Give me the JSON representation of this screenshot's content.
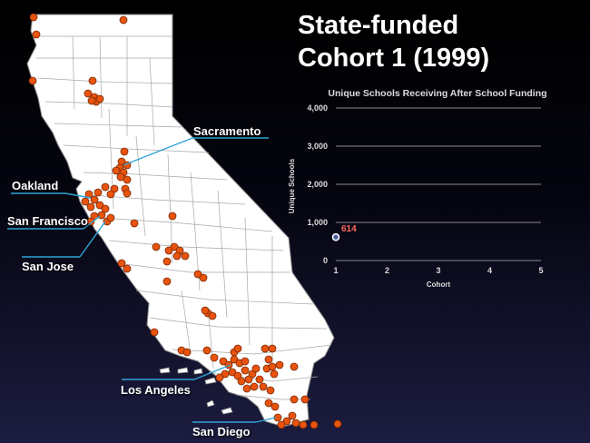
{
  "slide": {
    "title_line1": "State-funded",
    "title_line2": "Cohort 1 (1999)"
  },
  "map": {
    "land_color": "#ffffff",
    "border_color": "#9a9a9a",
    "site_color": "#e8530e",
    "leader_color": "#2fa3d6",
    "cities": [
      {
        "id": "sacramento",
        "label": "Sacramento"
      },
      {
        "id": "oakland",
        "label": "Oakland"
      },
      {
        "id": "san-francisco",
        "label": "San Francisco"
      },
      {
        "id": "san-jose",
        "label": "San Jose"
      },
      {
        "id": "los-angeles",
        "label": "Los Angeles"
      },
      {
        "id": "san-diego",
        "label": "San Diego"
      }
    ]
  },
  "chart_data": {
    "type": "scatter",
    "title": "Unique Schools Receiving After School Funding",
    "xlabel": "Cohort",
    "ylabel": "Unique Schools",
    "xlim": [
      1,
      5
    ],
    "ylim": [
      0,
      4000
    ],
    "x_ticks": [
      "1",
      "2",
      "3",
      "4",
      "5"
    ],
    "y_ticks": [
      "0",
      "1,000",
      "2,000",
      "3,000",
      "4,000"
    ],
    "grid": true,
    "series": [
      {
        "points": [
          {
            "x": 1,
            "y": 614,
            "label": "614"
          }
        ]
      }
    ],
    "colors": {
      "point_fill": "#4a5f9e",
      "point_stroke": "#ffffff",
      "data_label": "#ff6a5a",
      "text": "#dddddd",
      "grid": "#8a8a8a"
    }
  }
}
